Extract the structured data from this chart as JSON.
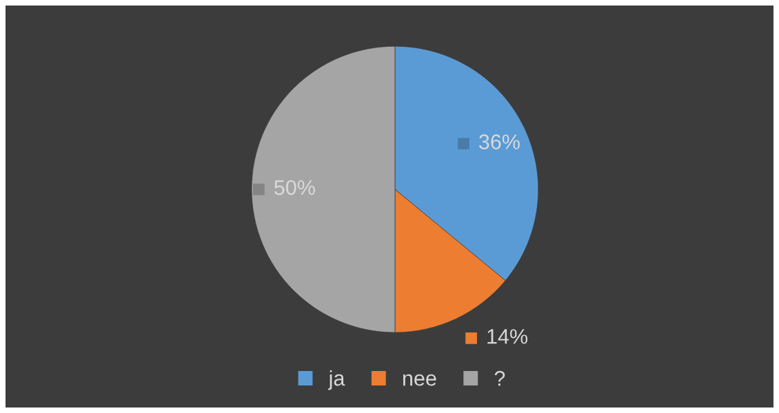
{
  "chart_data": {
    "type": "pie",
    "categories": [
      "ja",
      "nee",
      "?"
    ],
    "values": [
      36,
      14,
      50
    ],
    "colors": [
      "#5b9bd5",
      "#ed7d31",
      "#a5a5a5"
    ],
    "value_labels": [
      "36%",
      "14%",
      "50%"
    ],
    "legend": "bottom"
  }
}
